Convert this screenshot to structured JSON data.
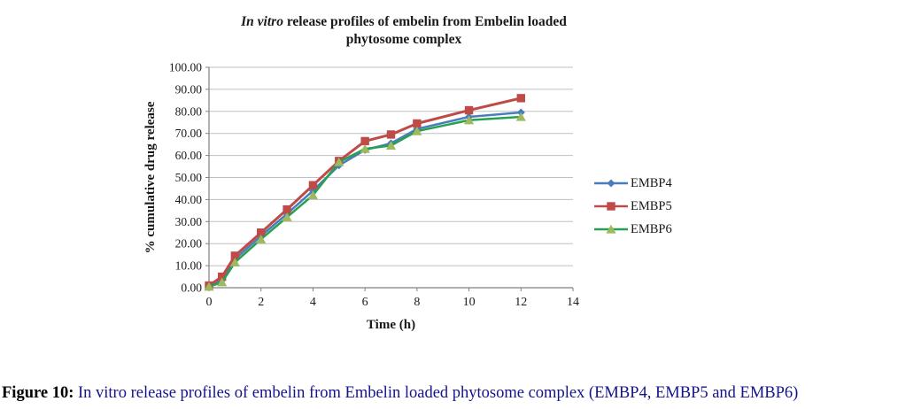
{
  "title": {
    "italic_part": "In vitro",
    "line1_rest": " release profiles of embelin from Embelin loaded",
    "line2": "phytosome complex"
  },
  "caption": {
    "label": "Figure 10:",
    "text": " In vitro release profiles of embelin from Embelin loaded phytosome complex (EMBP4, EMBP5 and EMBP6)"
  },
  "colors": {
    "grid": "#bfbfbf",
    "axis": "#808080",
    "embp4": "#4a7ebb",
    "embp5": "#be4b48",
    "embp6_line": "#28a050",
    "embp6_marker": "#9fb95e",
    "caption_text": "#14148c"
  },
  "chart_data": {
    "type": "line",
    "title": "In vitro release profiles of embelin from Embelin loaded phytosome complex",
    "xlabel": "Time (h)",
    "ylabel": "% cumulative drug release",
    "xlim": [
      0,
      14
    ],
    "ylim": [
      0,
      100
    ],
    "grid": "horizontal",
    "legend_position": "right",
    "x_ticks": [
      0,
      2,
      4,
      6,
      8,
      10,
      12,
      14
    ],
    "y_ticks": [
      "0.00",
      "10.00",
      "20.00",
      "30.00",
      "40.00",
      "50.00",
      "60.00",
      "70.00",
      "80.00",
      "90.00",
      "100.00"
    ],
    "x": [
      0,
      0.5,
      1,
      2,
      3,
      4,
      5,
      6,
      7,
      8,
      10,
      12
    ],
    "series": [
      {
        "name": "EMBP4",
        "marker": "diamond",
        "color": "#4a7ebb",
        "marker_color": "#4a7ebb",
        "values": [
          0.7,
          3.5,
          13.0,
          23.5,
          33.5,
          44.0,
          55.5,
          62.5,
          65.5,
          72.0,
          77.5,
          79.5
        ]
      },
      {
        "name": "EMBP5",
        "marker": "square",
        "color": "#be4b48",
        "marker_color": "#be4b48",
        "values": [
          1.0,
          5.0,
          14.5,
          25.0,
          35.5,
          46.5,
          57.5,
          66.5,
          69.5,
          74.5,
          80.5,
          86.0
        ]
      },
      {
        "name": "EMBP6",
        "marker": "triangle",
        "color": "#28a050",
        "marker_color": "#9fb95e",
        "values": [
          0.5,
          2.5,
          11.5,
          22.0,
          32.0,
          42.0,
          57.0,
          63.0,
          64.5,
          71.0,
          76.0,
          77.5
        ]
      }
    ]
  }
}
